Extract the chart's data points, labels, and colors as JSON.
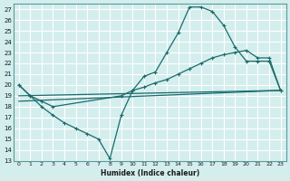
{
  "xlabel": "Humidex (Indice chaleur)",
  "ylabel": "",
  "xlim": [
    -0.5,
    23.5
  ],
  "ylim": [
    13,
    27.5
  ],
  "yticks": [
    13,
    14,
    15,
    16,
    17,
    18,
    19,
    20,
    21,
    22,
    23,
    24,
    25,
    26,
    27
  ],
  "xticks": [
    0,
    1,
    2,
    3,
    4,
    5,
    6,
    7,
    8,
    9,
    10,
    11,
    12,
    13,
    14,
    15,
    16,
    17,
    18,
    19,
    20,
    21,
    22,
    23
  ],
  "background_color": "#d4eeee",
  "grid_color": "#ffffff",
  "line_color": "#1a6b6b",
  "line1_x": [
    0,
    1,
    2,
    3,
    4,
    5,
    6,
    7,
    8,
    9,
    10,
    11,
    12,
    13,
    14,
    15,
    16,
    17,
    18,
    19,
    20,
    21,
    22,
    23
  ],
  "line1_y": [
    20.0,
    19.0,
    18.0,
    17.2,
    16.5,
    16.0,
    15.5,
    15.0,
    13.2,
    17.2,
    19.5,
    20.8,
    21.2,
    23.0,
    24.8,
    27.2,
    27.2,
    26.8,
    25.5,
    23.5,
    22.2,
    22.2,
    22.2,
    19.5
  ],
  "line2_x": [
    0,
    1,
    2,
    3,
    9,
    10,
    11,
    12,
    13,
    14,
    15,
    16,
    17,
    18,
    19,
    20,
    21,
    22,
    23
  ],
  "line2_y": [
    20.0,
    19.0,
    18.5,
    18.0,
    19.0,
    19.5,
    19.8,
    20.2,
    20.5,
    21.0,
    21.5,
    22.0,
    22.5,
    22.8,
    23.0,
    23.2,
    22.5,
    22.5,
    19.5
  ],
  "line3_x": [
    0,
    23
  ],
  "line3_y": [
    19.0,
    19.5
  ],
  "line4_x": [
    0,
    23
  ],
  "line4_y": [
    18.5,
    19.5
  ]
}
